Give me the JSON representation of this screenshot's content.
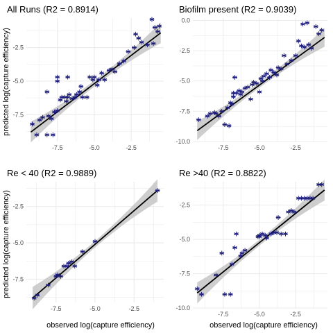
{
  "figure": {
    "ylabel": "predicted log(capture efficiency)",
    "xlabel": "observed log(capture efficiency)"
  },
  "colors": {
    "point": "#1c1c7a",
    "fit_line": "#000000",
    "ribbon": "#bdbdbd",
    "grid": "#ebebeb",
    "tick_text": "#4d4d4d",
    "title_text": "#000000"
  },
  "chart_data": [
    {
      "type": "scatter",
      "title": "All Runs (R2 = 0.8914)",
      "xlim": [
        -9.6,
        -0.3
      ],
      "ylim": [
        -9.5,
        -0.3
      ],
      "xticks": [
        -7.5,
        -5.0,
        -2.5
      ],
      "xtick_labels": [
        "-7.5",
        "-5.0",
        "-2.5"
      ],
      "yticks": [
        -7.5,
        -5.0,
        -2.5
      ],
      "ytick_labels": [
        "-7.5",
        "-5.0",
        "-2.5"
      ],
      "fit": {
        "x": [
          -9.3,
          -0.5
        ],
        "y": [
          -8.8,
          -1.4
        ]
      },
      "points": [
        [
          -9.2,
          -8.2
        ],
        [
          -8.9,
          -9.0
        ],
        [
          -8.7,
          -7.9
        ],
        [
          -8.5,
          -7.7
        ],
        [
          -8.1,
          -7.6
        ],
        [
          -7.9,
          -7.8
        ],
        [
          -7.7,
          -7.3
        ],
        [
          -7.5,
          -7.2
        ],
        [
          -7.3,
          -6.4
        ],
        [
          -7.2,
          -6.2
        ],
        [
          -7.0,
          -6.2
        ],
        [
          -6.9,
          -6.5
        ],
        [
          -6.8,
          -6.2
        ],
        [
          -6.7,
          -6.0
        ],
        [
          -6.5,
          -6.3
        ],
        [
          -6.3,
          -6.2
        ],
        [
          -6.2,
          -6.0
        ],
        [
          -6.0,
          -5.8
        ],
        [
          -5.9,
          -5.4
        ],
        [
          -5.8,
          -6.2
        ],
        [
          -5.3,
          -4.7
        ],
        [
          -5.1,
          -4.9
        ],
        [
          -5.0,
          -4.7
        ],
        [
          -4.8,
          -5.3
        ],
        [
          -4.7,
          -4.9
        ],
        [
          -4.5,
          -4.4
        ],
        [
          -4.3,
          -4.9
        ],
        [
          -4.0,
          -4.2
        ],
        [
          -3.8,
          -4.1
        ],
        [
          -3.6,
          -4.3
        ],
        [
          -3.3,
          -3.7
        ],
        [
          -3.0,
          -3.5
        ],
        [
          -2.7,
          -2.8
        ],
        [
          -2.3,
          -2.5
        ],
        [
          -2.2,
          -1.5
        ],
        [
          -2.0,
          -1.8
        ],
        [
          -1.8,
          -2.1
        ],
        [
          -1.4,
          -2.3
        ],
        [
          -1.1,
          -0.4
        ],
        [
          -1.0,
          -2.2
        ],
        [
          -0.9,
          -1.0
        ],
        [
          -0.7,
          -1.3
        ],
        [
          -0.6,
          -0.9
        ],
        [
          -8.2,
          -9.0
        ],
        [
          -7.8,
          -9.0
        ],
        [
          -8.2,
          -5.8
        ],
        [
          -7.5,
          -4.7
        ],
        [
          -7.5,
          -5.0
        ],
        [
          -6.8,
          -4.7
        ],
        [
          -5.5,
          -6.2
        ]
      ]
    },
    {
      "type": "scatter",
      "title": "Biofilm present (R2 = 0.9039)",
      "xlim": [
        -9.6,
        -0.3
      ],
      "ylim": [
        -10.0,
        0.2
      ],
      "xticks": [
        -7.5,
        -5.0,
        -2.5
      ],
      "xtick_labels": [
        "-7.5",
        "-5.0",
        "-2.5"
      ],
      "yticks": [
        -10.0,
        -7.5,
        -5.0,
        -2.5,
        0.0
      ],
      "ytick_labels": [
        "-10.0",
        "-7.5",
        "-5.0",
        "-2.5",
        "0.0"
      ],
      "fit": {
        "x": [
          -9.3,
          -0.5
        ],
        "y": [
          -9.1,
          -1.4
        ]
      },
      "points": [
        [
          -9.2,
          -8.2
        ],
        [
          -8.6,
          -7.9
        ],
        [
          -8.4,
          -7.7
        ],
        [
          -8.1,
          -7.6
        ],
        [
          -7.8,
          -7.9
        ],
        [
          -7.6,
          -7.5
        ],
        [
          -7.4,
          -8.6
        ],
        [
          -7.2,
          -7.2
        ],
        [
          -7.1,
          -8.7
        ],
        [
          -7.0,
          -6.8
        ],
        [
          -6.9,
          -6.9
        ],
        [
          -6.8,
          -6.0
        ],
        [
          -6.7,
          -4.7
        ],
        [
          -6.6,
          -6.0
        ],
        [
          -6.4,
          -5.8
        ],
        [
          -6.2,
          -5.9
        ],
        [
          -6.0,
          -5.6
        ],
        [
          -5.8,
          -5.5
        ],
        [
          -5.6,
          -6.5
        ],
        [
          -5.4,
          -5.1
        ],
        [
          -5.0,
          -5.9
        ],
        [
          -4.9,
          -4.8
        ],
        [
          -4.7,
          -4.6
        ],
        [
          -4.5,
          -4.4
        ],
        [
          -4.3,
          -4.7
        ],
        [
          -4.0,
          -4.3
        ],
        [
          -3.8,
          -4.5
        ],
        [
          -3.5,
          -4.0
        ],
        [
          -3.3,
          -2.9
        ],
        [
          -3.1,
          -3.6
        ],
        [
          -2.8,
          -3.3
        ],
        [
          -2.5,
          -2.9
        ],
        [
          -2.3,
          -1.7
        ],
        [
          -2.1,
          -2.1
        ],
        [
          -1.9,
          -2.2
        ],
        [
          -1.7,
          -0.2
        ],
        [
          -1.4,
          -2.3
        ],
        [
          -1.1,
          -0.5
        ],
        [
          -0.9,
          -1.1
        ],
        [
          -0.7,
          -0.8
        ],
        [
          -6.8,
          -6.3
        ],
        [
          -5.2,
          -5.2
        ],
        [
          -4.2,
          -4.1
        ],
        [
          -2.0,
          -0.3
        ],
        [
          -8.0,
          -7.7
        ],
        [
          -1.6,
          -2.0
        ],
        [
          -5.5,
          -5.3
        ],
        [
          -6.3,
          -6.1
        ],
        [
          -4.8,
          -5.0
        ],
        [
          -3.7,
          -3.9
        ]
      ]
    },
    {
      "type": "scatter",
      "title": "Re < 40 (R2 = 0.9889)",
      "xlim": [
        -9.4,
        -0.6
      ],
      "ylim": [
        -9.1,
        -0.8
      ],
      "xticks": [
        -7.5,
        -5.0,
        -2.5
      ],
      "xtick_labels": [
        "-7.5",
        "-5.0",
        "-2.5"
      ],
      "yticks": [
        -7.5,
        -5.0,
        -2.5
      ],
      "ytick_labels": [
        "-7.5",
        "-5.0",
        "-2.5"
      ],
      "fit": {
        "x": [
          -9.0,
          -1.0
        ],
        "y": [
          -8.8,
          -1.4
        ]
      },
      "points": [
        [
          -8.9,
          -8.8
        ],
        [
          -8.7,
          -8.6
        ],
        [
          -8.0,
          -7.9
        ],
        [
          -7.5,
          -7.3
        ],
        [
          -7.4,
          -7.2
        ],
        [
          -7.2,
          -7.3
        ],
        [
          -7.0,
          -6.6
        ],
        [
          -6.8,
          -6.6
        ],
        [
          -6.7,
          -6.4
        ],
        [
          -6.5,
          -6.3
        ],
        [
          -6.3,
          -6.6
        ],
        [
          -5.8,
          -5.6
        ],
        [
          -5.0,
          -4.9
        ],
        [
          -1.0,
          -1.4
        ]
      ]
    },
    {
      "type": "scatter",
      "title": "Re >40 (R2 = 0.8822)",
      "xlim": [
        -9.6,
        -0.3
      ],
      "ylim": [
        -10.0,
        -0.8
      ],
      "xticks": [
        -7.5,
        -5.0,
        -2.5
      ],
      "xtick_labels": [
        "-7.5",
        "-5.0",
        "-2.5"
      ],
      "yticks": [
        -10.0,
        -7.5,
        -5.0,
        -2.5
      ],
      "ytick_labels": [
        "-10.0",
        "-7.5",
        "-5.0",
        "-2.5"
      ],
      "fit": {
        "x": [
          -9.3,
          -0.5
        ],
        "y": [
          -8.9,
          -1.4
        ]
      },
      "points": [
        [
          -9.3,
          -8.6
        ],
        [
          -9.0,
          -9.0
        ],
        [
          -8.0,
          -7.6
        ],
        [
          -7.6,
          -6.0
        ],
        [
          -7.4,
          -9.0
        ],
        [
          -7.0,
          -9.0
        ],
        [
          -6.9,
          -6.8
        ],
        [
          -6.7,
          -5.6
        ],
        [
          -6.6,
          -4.6
        ],
        [
          -6.2,
          -6.0
        ],
        [
          -6.0,
          -5.8
        ],
        [
          -5.1,
          -4.8
        ],
        [
          -5.0,
          -4.7
        ],
        [
          -4.8,
          -4.6
        ],
        [
          -4.6,
          -4.7
        ],
        [
          -4.5,
          -4.9
        ],
        [
          -4.2,
          -4.6
        ],
        [
          -4.0,
          -4.5
        ],
        [
          -3.8,
          -4.5
        ],
        [
          -3.5,
          -4.6
        ],
        [
          -3.2,
          -4.6
        ],
        [
          -3.0,
          -3.0
        ],
        [
          -2.8,
          -2.9
        ],
        [
          -2.6,
          -3.0
        ],
        [
          -2.3,
          -2.0
        ],
        [
          -2.1,
          -2.0
        ],
        [
          -1.9,
          -2.0
        ],
        [
          -1.7,
          -2.0
        ],
        [
          -1.5,
          -2.0
        ],
        [
          -1.3,
          -2.0
        ],
        [
          -0.9,
          -1.0
        ],
        [
          -0.7,
          -1.0
        ],
        [
          -6.3,
          -6.2
        ],
        [
          -5.0,
          -4.8
        ],
        [
          -3.7,
          -3.4
        ]
      ]
    }
  ]
}
